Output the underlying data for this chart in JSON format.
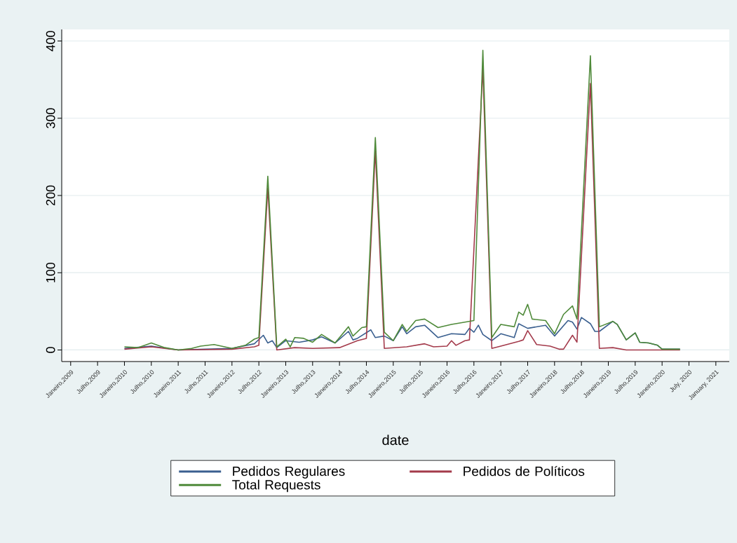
{
  "chart_data": {
    "type": "line",
    "xlabel": "date",
    "xlim": [
      "2008-11",
      "2021-04"
    ],
    "ylim": [
      -15,
      415
    ],
    "xticks": [
      {
        "value": "2009-01",
        "label": "Janeiro,2009"
      },
      {
        "value": "2009-07",
        "label": "Julho,2009"
      },
      {
        "value": "2010-01",
        "label": "Janeiro,2010"
      },
      {
        "value": "2010-07",
        "label": "Julho,2010"
      },
      {
        "value": "2011-01",
        "label": "Janeiro,2011"
      },
      {
        "value": "2011-07",
        "label": "Julho,2011"
      },
      {
        "value": "2012-01",
        "label": "Janeiro,2012"
      },
      {
        "value": "2012-07",
        "label": "Julho,2012"
      },
      {
        "value": "2013-01",
        "label": "Janeiro,2013"
      },
      {
        "value": "2013-07",
        "label": "Julho,2013"
      },
      {
        "value": "2014-01",
        "label": "Janeiro,2014"
      },
      {
        "value": "2014-07",
        "label": "Julho,2014"
      },
      {
        "value": "2015-01",
        "label": "Janeiro,2015"
      },
      {
        "value": "2015-07",
        "label": "Julho,2015"
      },
      {
        "value": "2016-01",
        "label": "Janeiro,2016"
      },
      {
        "value": "2016-07",
        "label": "Julho,2016"
      },
      {
        "value": "2017-01",
        "label": "Janeiro,2017"
      },
      {
        "value": "2017-07",
        "label": "Julho,2017"
      },
      {
        "value": "2018-01",
        "label": "Janeiro,2018"
      },
      {
        "value": "2018-07",
        "label": "Julho,2018"
      },
      {
        "value": "2019-01",
        "label": "Janeiro,2019"
      },
      {
        "value": "2019-07",
        "label": "Julho,2019"
      },
      {
        "value": "2020-01",
        "label": "Janeiro,2020"
      },
      {
        "value": "2020-07",
        "label": "July, 2020"
      },
      {
        "value": "2021-01",
        "label": "January, 2021"
      }
    ],
    "yticks": [
      0,
      100,
      200,
      300,
      400
    ],
    "grid": "y",
    "legend": "bottom",
    "series": [
      {
        "name": "Pedidos Regulares",
        "color": "#3a5f8f",
        "x": [
          "2010-01",
          "2010-07",
          "2011-01",
          "2011-07",
          "2012-01",
          "2012-06",
          "2012-08",
          "2012-09",
          "2012-10",
          "2012-11",
          "2013-01",
          "2013-04",
          "2013-07",
          "2013-09",
          "2013-12",
          "2014-03",
          "2014-04",
          "2014-05",
          "2014-08",
          "2014-09",
          "2014-11",
          "2015-01",
          "2015-03",
          "2015-04",
          "2015-06",
          "2015-08",
          "2015-11",
          "2016-02",
          "2016-05",
          "2016-06",
          "2016-07",
          "2016-08",
          "2016-09",
          "2016-11",
          "2017-01",
          "2017-04",
          "2017-05",
          "2017-07",
          "2017-11",
          "2018-01",
          "2018-04",
          "2018-05",
          "2018-06",
          "2018-07",
          "2018-09",
          "2018-10",
          "2018-11",
          "2019-02",
          "2019-03",
          "2019-05",
          "2019-07",
          "2019-08",
          "2019-10",
          "2019-12",
          "2020-01",
          "2020-05"
        ],
        "values": [
          2,
          5,
          0,
          1,
          2,
          8,
          19,
          9,
          12,
          3,
          12,
          10,
          13,
          17,
          9,
          24,
          13,
          15,
          26,
          16,
          18,
          12,
          30,
          21,
          30,
          32,
          16,
          21,
          20,
          28,
          23,
          32,
          20,
          12,
          21,
          16,
          34,
          28,
          32,
          18,
          38,
          36,
          27,
          42,
          34,
          24,
          24,
          37,
          33,
          13,
          22,
          10,
          9,
          6,
          1,
          1
        ]
      },
      {
        "name": "Pedidos de Políticos",
        "color": "#a33a4b",
        "x": [
          "2010-01",
          "2010-07",
          "2011-01",
          "2012-01",
          "2012-06",
          "2012-07",
          "2012-09",
          "2012-11",
          "2013-03",
          "2013-07",
          "2014-01",
          "2014-05",
          "2014-07",
          "2014-09",
          "2014-11",
          "2015-04",
          "2015-08",
          "2015-10",
          "2016-01",
          "2016-02",
          "2016-03",
          "2016-05",
          "2016-06",
          "2016-09",
          "2016-11",
          "2017-01",
          "2017-05",
          "2017-06",
          "2017-07",
          "2017-09",
          "2017-12",
          "2018-02",
          "2018-03",
          "2018-05",
          "2018-06",
          "2018-09",
          "2018-11",
          "2019-02",
          "2019-05",
          "2020-05"
        ],
        "values": [
          1,
          4,
          0,
          1,
          4,
          6,
          210,
          0,
          3,
          2,
          3,
          12,
          15,
          258,
          2,
          4,
          8,
          4,
          5,
          12,
          6,
          12,
          13,
          365,
          2,
          5,
          11,
          13,
          25,
          7,
          5,
          1,
          1,
          19,
          10,
          345,
          2,
          3,
          0,
          0
        ]
      },
      {
        "name": "Total Requests",
        "color": "#4f8a3a",
        "x": [
          "2010-01",
          "2010-04",
          "2010-07",
          "2010-10",
          "2011-01",
          "2011-04",
          "2011-06",
          "2011-09",
          "2012-01",
          "2012-04",
          "2012-06",
          "2012-07",
          "2012-09",
          "2012-11",
          "2013-01",
          "2013-02",
          "2013-03",
          "2013-05",
          "2013-07",
          "2013-09",
          "2013-12",
          "2014-03",
          "2014-04",
          "2014-06",
          "2014-07",
          "2014-09",
          "2014-11",
          "2015-01",
          "2015-03",
          "2015-04",
          "2015-06",
          "2015-08",
          "2015-11",
          "2016-02",
          "2016-05",
          "2016-07",
          "2016-09",
          "2016-11",
          "2017-01",
          "2017-04",
          "2017-05",
          "2017-06",
          "2017-07",
          "2017-08",
          "2017-11",
          "2018-01",
          "2018-03",
          "2018-05",
          "2018-06",
          "2018-09",
          "2018-11",
          "2019-02",
          "2019-03",
          "2019-05",
          "2019-07",
          "2019-08",
          "2019-10",
          "2019-12",
          "2020-01",
          "2020-05"
        ],
        "values": [
          4,
          3,
          9,
          3,
          0,
          2,
          5,
          7,
          2,
          6,
          14,
          16,
          225,
          4,
          14,
          4,
          16,
          15,
          10,
          20,
          9,
          30,
          18,
          29,
          30,
          275,
          23,
          12,
          33,
          24,
          38,
          40,
          29,
          33,
          36,
          38,
          388,
          16,
          33,
          30,
          49,
          45,
          59,
          40,
          38,
          21,
          46,
          57,
          40,
          381,
          30,
          37,
          33,
          13,
          22,
          10,
          9,
          6,
          1,
          1
        ]
      }
    ]
  }
}
